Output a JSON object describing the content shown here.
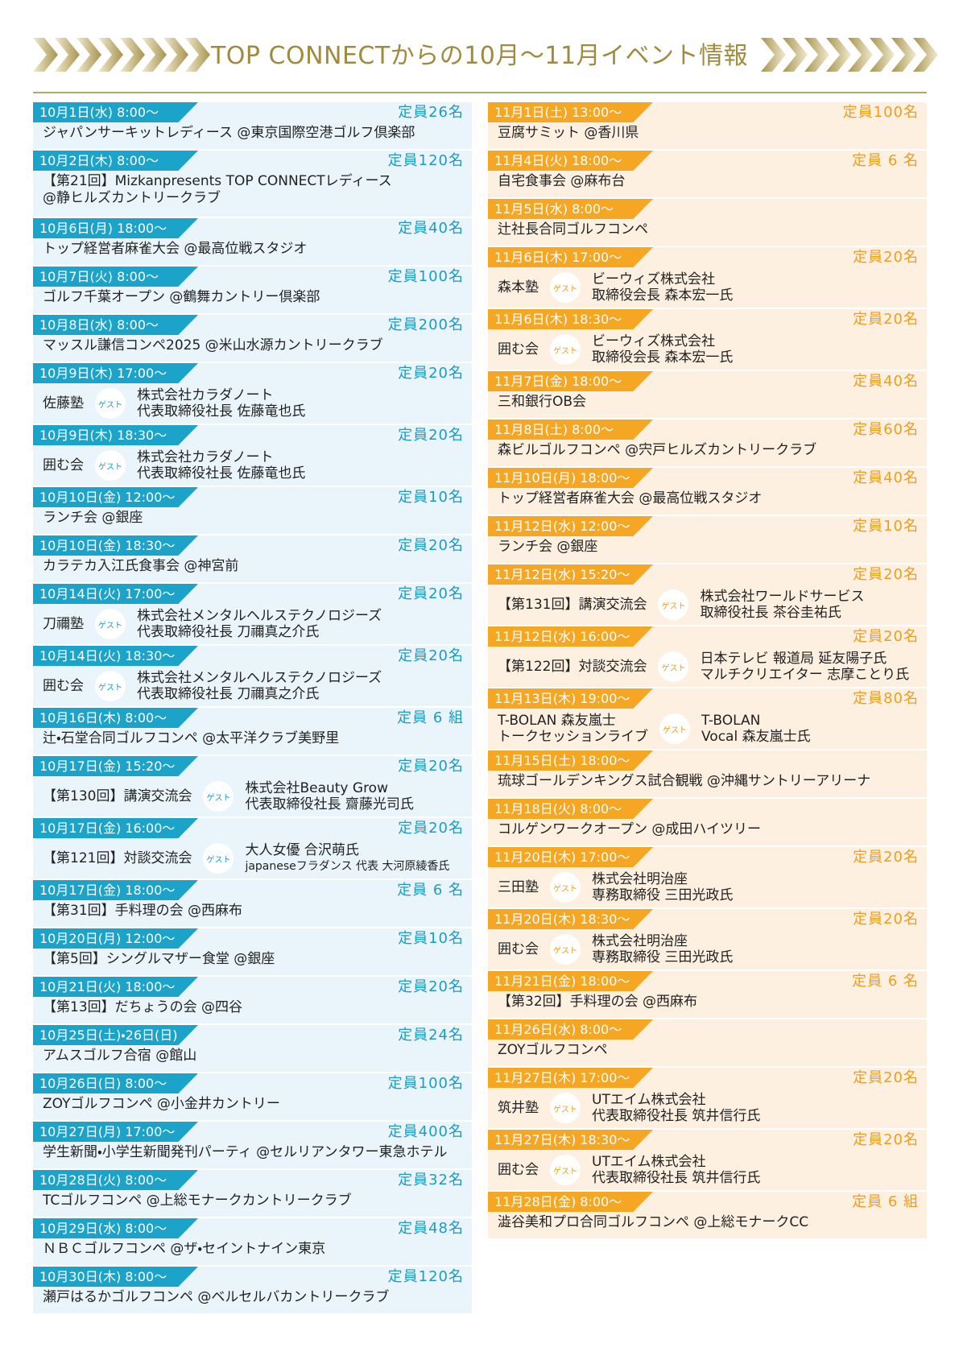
{
  "title": "TOP CONNECTからの10月〜11月イベント情報",
  "guest_label": "ゲスト",
  "left": [
    {
      "date": "10月1日(水) 8:00〜",
      "capacity": "定員26名",
      "text": [
        "ジャパンサーキットレディース @東京国際空港ゴルフ倶楽部"
      ]
    },
    {
      "date": "10月2日(木) 8:00〜",
      "capacity": "定員120名",
      "text": [
        "【第21回】Mizkanpresents TOP CONNECTレディース",
        "@静ヒルズカントリークラブ"
      ]
    },
    {
      "date": "10月6日(月) 18:00〜",
      "capacity": "定員40名",
      "text": [
        "トップ経営者麻雀大会 @最高位戦スタジオ"
      ]
    },
    {
      "date": "10月7日(火) 8:00〜",
      "capacity": "定員100名",
      "text": [
        "ゴルフ千葉オープン @鶴舞カントリー倶楽部"
      ]
    },
    {
      "date": "10月8日(水) 8:00〜",
      "capacity": "定員200名",
      "text": [
        "マッスル謙信コンペ2025 @米山水源カントリークラブ"
      ]
    },
    {
      "date": "10月9日(木) 17:00〜",
      "capacity": "定員20名",
      "host": [
        "佐藤塾"
      ],
      "guest": [
        "株式会社カラダノート",
        "代表取締役社長 佐藤竜也氏"
      ]
    },
    {
      "date": "10月9日(木) 18:30〜",
      "capacity": "定員20名",
      "host": [
        "囲む会"
      ],
      "guest": [
        "株式会社カラダノート",
        "代表取締役社長 佐藤竜也氏"
      ]
    },
    {
      "date": "10月10日(金) 12:00〜",
      "capacity": "定員10名",
      "text": [
        "ランチ会 @銀座"
      ]
    },
    {
      "date": "10月10日(金) 18:30〜",
      "capacity": "定員20名",
      "text": [
        "カラテカ入江氏食事会 @神宮前"
      ]
    },
    {
      "date": "10月14日(火) 17:00〜",
      "capacity": "定員20名",
      "host": [
        "刀禰塾"
      ],
      "guest": [
        "株式会社メンタルヘルステクノロジーズ",
        "代表取締役社長 刀禰真之介氏"
      ]
    },
    {
      "date": "10月14日(火) 18:30〜",
      "capacity": "定員20名",
      "host": [
        "囲む会"
      ],
      "guest": [
        "株式会社メンタルヘルステクノロジーズ",
        "代表取締役社長 刀禰真之介氏"
      ]
    },
    {
      "date": "10月16日(木) 8:00〜",
      "capacity": "定員 6 組",
      "text": [
        "辻・石堂合同ゴルフコンペ @太平洋クラブ美野里"
      ]
    },
    {
      "date": "10月17日(金) 15:20〜",
      "capacity": "定員20名",
      "host": [
        "【第130回】講演交流会"
      ],
      "guest": [
        "株式会社Beauty Grow",
        "代表取締役社長 齋藤光司氏"
      ]
    },
    {
      "date": "10月17日(金) 16:00〜",
      "capacity": "定員20名",
      "host": [
        "【第121回】対談交流会"
      ],
      "guest": [
        "大人女優 合沢萌氏",
        "japaneseフラダンス 代表 大河原綾香氏"
      ]
    },
    {
      "date": "10月17日(金) 18:00〜",
      "capacity": "定員 6 名",
      "text": [
        "【第31回】手料理の会 @西麻布"
      ]
    },
    {
      "date": "10月20日(月) 12:00〜",
      "capacity": "定員10名",
      "text": [
        "【第5回】シングルマザー食堂 @銀座"
      ]
    },
    {
      "date": "10月21日(火) 18:00〜",
      "capacity": "定員20名",
      "text": [
        "【第13回】だちょうの会 @四谷"
      ]
    },
    {
      "date": "10月25日(土)・26日(日)",
      "capacity": "定員24名",
      "text": [
        "アムスゴルフ合宿 @館山"
      ]
    },
    {
      "date": "10月26日(日) 8:00〜",
      "capacity": "定員100名",
      "text": [
        "ZOYゴルフコンペ @小金井カントリー"
      ]
    },
    {
      "date": "10月27日(月) 17:00〜",
      "capacity": "定員400名",
      "text": [
        "学生新聞・小学生新聞発刊パーティ @セルリアンタワー東急ホテル"
      ]
    },
    {
      "date": "10月28日(火) 8:00〜",
      "capacity": "定員32名",
      "text": [
        "TCゴルフコンペ @上総モナークカントリークラブ"
      ]
    },
    {
      "date": "10月29日(水) 8:00〜",
      "capacity": "定員48名",
      "text": [
        "ＮＢＣゴルフコンペ @ザ・セイントナイン東京"
      ]
    },
    {
      "date": "10月30日(木) 8:00〜",
      "capacity": "定員120名",
      "text": [
        "瀬戸はるかゴルフコンペ @ベルセルバカントリークラブ"
      ]
    }
  ],
  "right": [
    {
      "date": "11月1日(土) 13:00〜",
      "capacity": "定員100名",
      "text": [
        "豆腐サミット @香川県"
      ]
    },
    {
      "date": "11月4日(火) 18:00〜",
      "capacity": "定員 6 名",
      "text": [
        "自宅食事会 @麻布台"
      ]
    },
    {
      "date": "11月5日(水) 8:00〜",
      "text": [
        "辻社長合同ゴルフコンペ"
      ]
    },
    {
      "date": "11月6日(木) 17:00〜",
      "capacity": "定員20名",
      "host": [
        "森本塾"
      ],
      "guest": [
        "ビーウィズ株式会社",
        "取締役会長 森本宏一氏"
      ]
    },
    {
      "date": "11月6日(木) 18:30〜",
      "capacity": "定員20名",
      "host": [
        "囲む会"
      ],
      "guest": [
        "ビーウィズ株式会社",
        "取締役会長 森本宏一氏"
      ]
    },
    {
      "date": "11月7日(金) 18:00〜",
      "capacity": "定員40名",
      "text": [
        "三和銀行OB会"
      ]
    },
    {
      "date": "11月8日(土) 8:00〜",
      "capacity": "定員60名",
      "text": [
        "森ビルゴルフコンペ @宍戸ヒルズカントリークラブ"
      ]
    },
    {
      "date": "11月10日(月) 18:00〜",
      "capacity": "定員40名",
      "text": [
        "トップ経営者麻雀大会 @最高位戦スタジオ"
      ]
    },
    {
      "date": "11月12日(水) 12:00〜",
      "capacity": "定員10名",
      "text": [
        "ランチ会 @銀座"
      ]
    },
    {
      "date": "11月12日(水) 15:20〜",
      "capacity": "定員20名",
      "host": [
        "【第131回】講演交流会"
      ],
      "guest": [
        "株式会社ワールドサービス",
        "取締役社長 茶谷圭祐氏"
      ]
    },
    {
      "date": "11月12日(水) 16:00〜",
      "capacity": "定員20名",
      "host": [
        "【第122回】対談交流会"
      ],
      "guest": [
        "日本テレビ 報道局 延友陽子氏",
        "マルチクリエイター 志摩ことり氏"
      ]
    },
    {
      "date": "11月13日(木) 19:00〜",
      "capacity": "定員80名",
      "host": [
        "T-BOLAN 森友嵐士",
        "トークセッションライブ"
      ],
      "guest": [
        "T-BOLAN",
        "Vocal 森友嵐士氏"
      ]
    },
    {
      "date": "11月15日(土) 18:00〜",
      "text": [
        "琉球ゴールデンキングス試合観戦 @沖縄サントリーアリーナ"
      ]
    },
    {
      "date": "11月18日(火) 8:00〜",
      "text": [
        "コルゲンワークオープン @成田ハイツリー"
      ]
    },
    {
      "date": "11月20日(木) 17:00〜",
      "capacity": "定員20名",
      "host": [
        "三田塾"
      ],
      "guest": [
        "株式会社明治座",
        "専務取締役 三田光政氏"
      ]
    },
    {
      "date": "11月20日(木) 18:30〜",
      "capacity": "定員20名",
      "host": [
        "囲む会"
      ],
      "guest": [
        "株式会社明治座",
        "専務取締役 三田光政氏"
      ]
    },
    {
      "date": "11月21日(金) 18:00〜",
      "capacity": "定員 6 名",
      "text": [
        "【第32回】手料理の会 @西麻布"
      ]
    },
    {
      "date": "11月26日(水) 8:00〜",
      "text": [
        "ZOYゴルフコンペ"
      ]
    },
    {
      "date": "11月27日(木) 17:00〜",
      "capacity": "定員20名",
      "host": [
        "筑井塾"
      ],
      "guest": [
        "UTエイム株式会社",
        "代表取締役社長 筑井信行氏"
      ]
    },
    {
      "date": "11月27日(木) 18:30〜",
      "capacity": "定員20名",
      "host": [
        "囲む会"
      ],
      "guest": [
        "UTエイム株式会社",
        "代表取締役社長 筑井信行氏"
      ]
    },
    {
      "date": "11月28日(金) 8:00〜",
      "capacity": "定員 6 組",
      "text": [
        "澁谷美和プロ合同ゴルフコンペ @上総モナークCC"
      ]
    }
  ]
}
